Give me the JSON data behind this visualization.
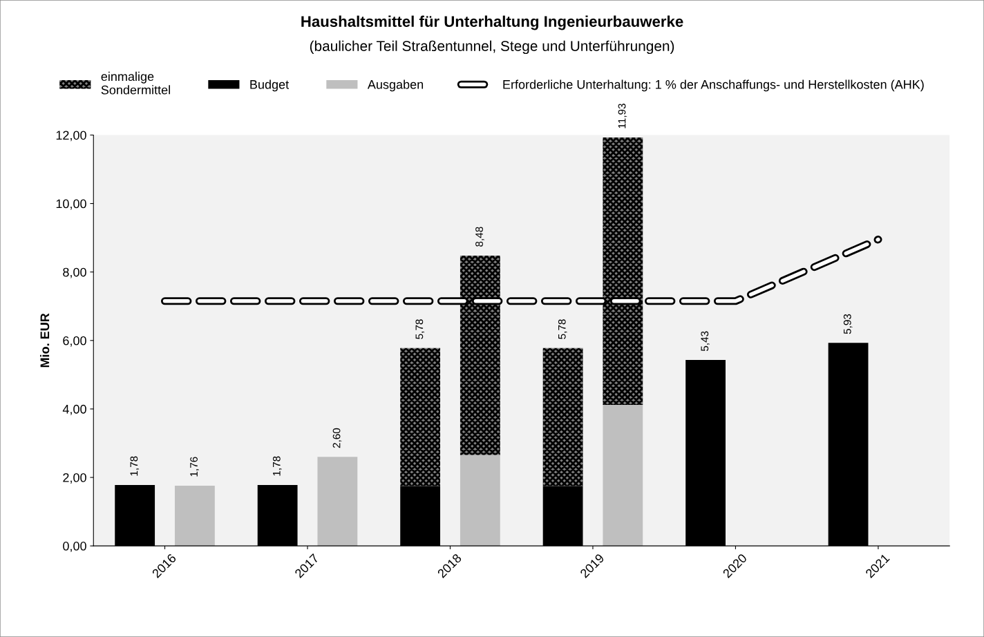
{
  "chart_data": {
    "type": "bar",
    "title": "Haushaltsmittel für Unterhaltung Ingenieurbauwerke",
    "subtitle": "(baulicher Teil Straßentunnel, Stege und Unterführungen)",
    "ylabel": "Mio. EUR",
    "categories": [
      "2016",
      "2017",
      "2018",
      "2019",
      "2020",
      "2021"
    ],
    "series": [
      {
        "name": "einmalige\nSondermittel",
        "color": "#808080",
        "base": [
          null,
          null,
          1.75,
          1.75,
          null,
          null
        ],
        "values": [
          null,
          null,
          4.03,
          4.03,
          null,
          null
        ]
      },
      {
        "name": "Budget",
        "color": "#000000",
        "values": [
          1.78,
          1.78,
          1.75,
          1.75,
          5.43,
          5.93
        ],
        "value_labels": [
          "1,78",
          "1,78",
          null,
          null,
          "5,43",
          "5,93"
        ]
      },
      {
        "color": "#808080",
        "base": [
          null,
          null,
          2.65,
          4.12,
          null,
          null
        ],
        "values": [
          null,
          null,
          5.83,
          7.81,
          null,
          null
        ]
      },
      {
        "name": "Ausgaben",
        "color": "#bfbfbf",
        "values": [
          1.76,
          2.6,
          2.65,
          4.12,
          null,
          null
        ],
        "value_labels": [
          "1,76",
          "2,60",
          null,
          null,
          null,
          null
        ]
      },
      {
        "name": "Erforderliche Unterhaltung: 1 % der Anschaffungs- und Herstellkosten (AHK)",
        "type": "line",
        "line_style": "dashed",
        "color": "#000000",
        "values": [
          7.15,
          7.15,
          7.15,
          7.15,
          7.15,
          8.95
        ]
      }
    ],
    "ylim": [
      0,
      12
    ],
    "yticks": [
      {
        "value": 0,
        "label": "0,00"
      },
      {
        "value": 2,
        "label": "2,00"
      },
      {
        "value": 4,
        "label": "4,00"
      },
      {
        "value": 6,
        "label": "6,00"
      },
      {
        "value": 8,
        "label": "8,00"
      },
      {
        "value": 10,
        "label": "10,00"
      },
      {
        "value": 12,
        "label": "12,00"
      }
    ],
    "annotations": [
      "5,78",
      "8,48",
      "5,78",
      "11,93"
    ],
    "grid": false,
    "legend": "top",
    "marker": "none"
  }
}
